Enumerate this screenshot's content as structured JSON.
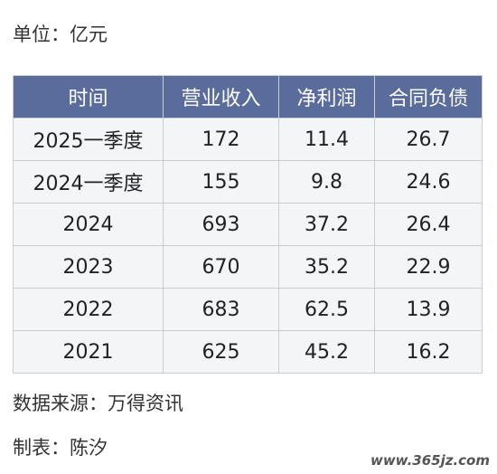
{
  "header": {
    "unit": "单位：亿元"
  },
  "table": {
    "columns": [
      "时间",
      "营业收入",
      "净利润",
      "合同负债"
    ],
    "rows": [
      [
        "2025一季度",
        "172",
        "11.4",
        "26.7"
      ],
      [
        "2024一季度",
        "155",
        "9.8",
        "24.6"
      ],
      [
        "2024",
        "693",
        "37.2",
        "26.4"
      ],
      [
        "2023",
        "670",
        "35.2",
        "22.9"
      ],
      [
        "2022",
        "683",
        "62.5",
        "13.9"
      ],
      [
        "2021",
        "625",
        "45.2",
        "16.2"
      ]
    ]
  },
  "footer": {
    "source": "数据来源：万得资讯",
    "author": "制表：陈汐"
  },
  "watermark": "www.365jz.com"
}
